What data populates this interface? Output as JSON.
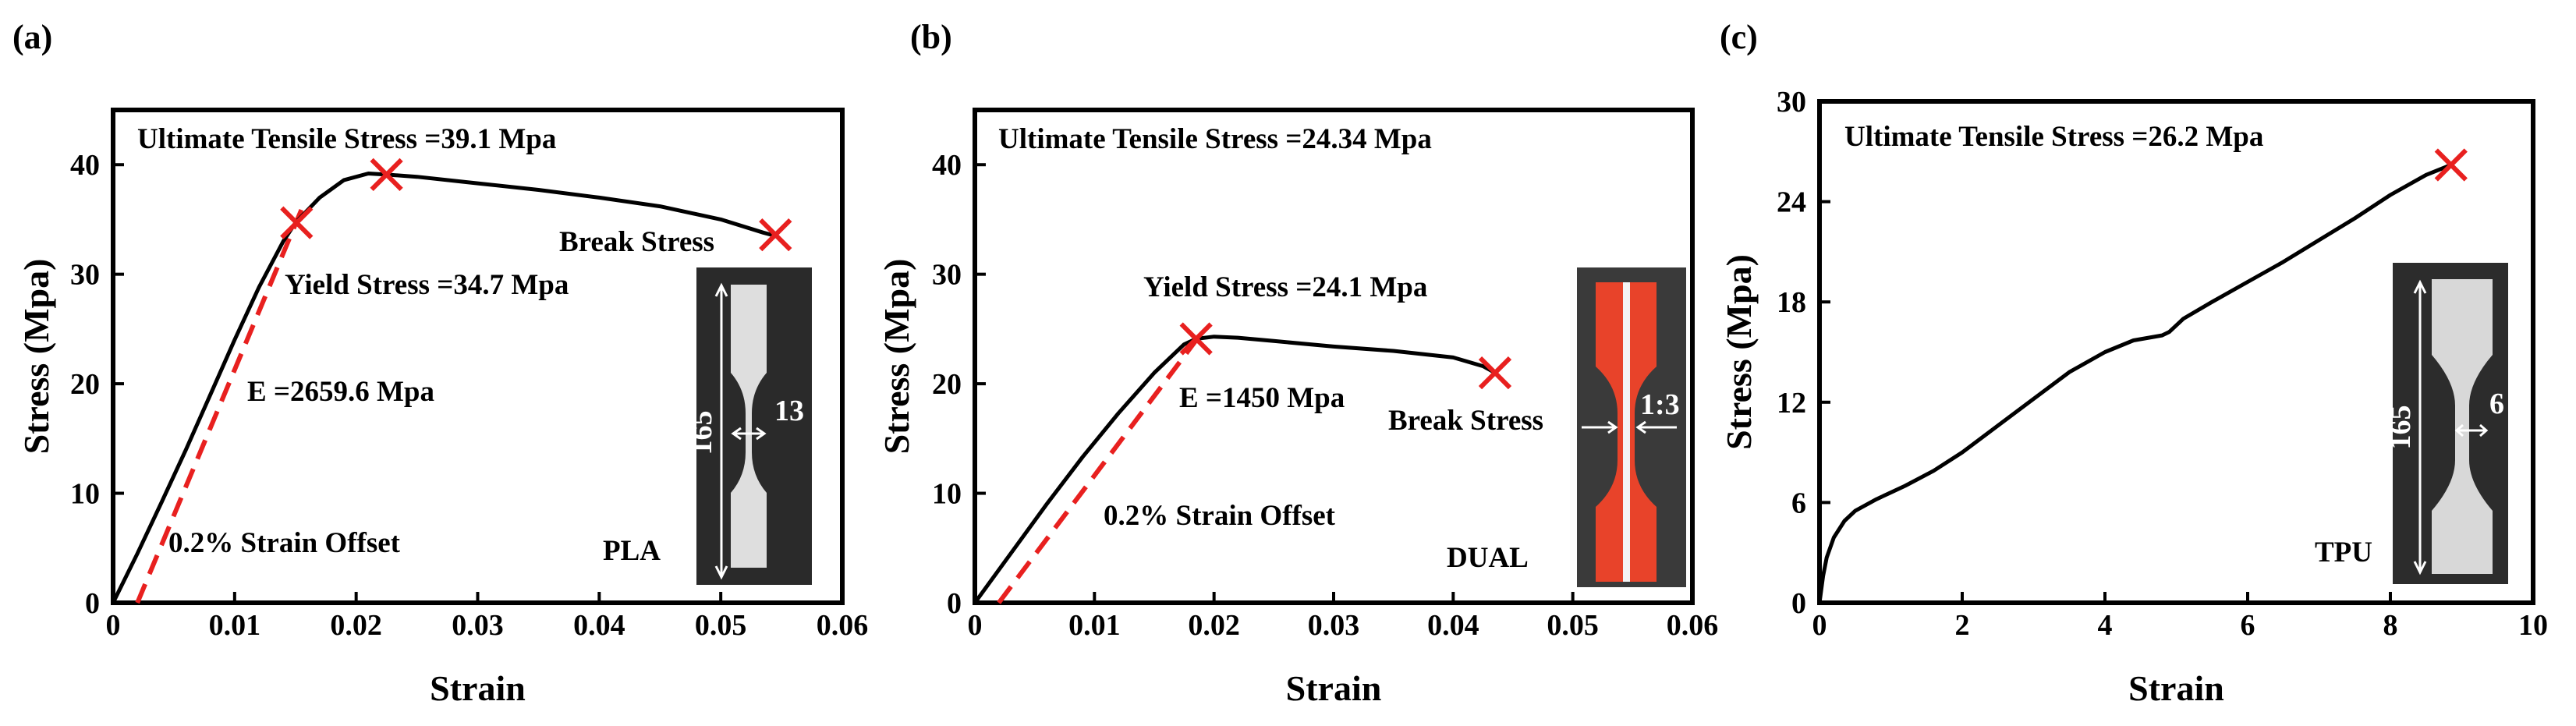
{
  "figure": {
    "panel_labels": [
      "(a)",
      "(b)",
      "(c)"
    ]
  },
  "chart_data": [
    {
      "type": "line",
      "panel": "(a)",
      "xlabel": "Strain",
      "ylabel": "Stress (Mpa)",
      "xlim": [
        0,
        0.06
      ],
      "ylim": [
        0,
        45
      ],
      "xticks": [
        0,
        0.01,
        0.02,
        0.03,
        0.04,
        0.05,
        0.06
      ],
      "xtick_labels": [
        "0",
        "0.01",
        "0.02",
        "0.03",
        "0.04",
        "0.05",
        "0.06"
      ],
      "yticks": [
        0,
        10,
        20,
        30,
        40
      ],
      "ytick_labels": [
        "0",
        "10",
        "20",
        "30",
        "40"
      ],
      "series": [
        {
          "name": "PLA stress-strain",
          "color": "#000000",
          "x": [
            0,
            0.002,
            0.004,
            0.006,
            0.008,
            0.01,
            0.012,
            0.014,
            0.015,
            0.017,
            0.019,
            0.021,
            0.0225,
            0.025,
            0.03,
            0.035,
            0.04,
            0.045,
            0.05,
            0.0535,
            0.0545
          ],
          "y": [
            0,
            4.5,
            9.2,
            14.0,
            19.0,
            24.0,
            28.8,
            33.0,
            34.7,
            37.0,
            38.6,
            39.2,
            39.1,
            38.9,
            38.3,
            37.7,
            37.0,
            36.2,
            35.0,
            33.8,
            33.5
          ]
        }
      ],
      "offset_line": {
        "color": "#e8201f",
        "x": [
          0.002,
          0.0155
        ],
        "y": [
          0,
          35.9
        ]
      },
      "markers": [
        {
          "name": "yield",
          "x": 0.0151,
          "y": 34.7,
          "color": "#e8201f"
        },
        {
          "name": "ultimate",
          "x": 0.0225,
          "y": 39.1,
          "color": "#e8201f"
        },
        {
          "name": "break",
          "x": 0.0545,
          "y": 33.6,
          "color": "#e8201f"
        }
      ],
      "annotations": {
        "uts": "Ultimate Tensile Stress =39.1 Mpa",
        "break": "Break Stress",
        "yield": "Yield Stress =34.7 Mpa",
        "modulus": "E =2659.6 Mpa",
        "offset": "0.2% Strain Offset",
        "material": "PLA"
      },
      "inset": {
        "bg": "#2a2a2a",
        "specimen_color": "#dedede",
        "length": "165",
        "width": "13"
      }
    },
    {
      "type": "line",
      "panel": "(b)",
      "xlabel": "Strain",
      "ylabel": "Stress (Mpa)",
      "xlim": [
        0,
        0.06
      ],
      "ylim": [
        0,
        45
      ],
      "xticks": [
        0,
        0.01,
        0.02,
        0.03,
        0.04,
        0.05,
        0.06
      ],
      "xtick_labels": [
        "0",
        "0.01",
        "0.02",
        "0.03",
        "0.04",
        "0.05",
        "0.06"
      ],
      "yticks": [
        0,
        10,
        20,
        30,
        40
      ],
      "ytick_labels": [
        "0",
        "10",
        "20",
        "30",
        "40"
      ],
      "series": [
        {
          "name": "DUAL stress-strain",
          "color": "#000000",
          "x": [
            0,
            0.003,
            0.006,
            0.009,
            0.012,
            0.015,
            0.0175,
            0.0185,
            0.02,
            0.022,
            0.025,
            0.03,
            0.035,
            0.04,
            0.0425,
            0.0435
          ],
          "y": [
            0,
            4.5,
            9.0,
            13.3,
            17.3,
            21.0,
            23.6,
            24.1,
            24.3,
            24.2,
            23.9,
            23.4,
            23.0,
            22.4,
            21.6,
            21.0
          ]
        }
      ],
      "offset_line": {
        "color": "#e8201f",
        "x": [
          0.002,
          0.0188
        ],
        "y": [
          0,
          24.4
        ]
      },
      "markers": [
        {
          "name": "yield",
          "x": 0.0185,
          "y": 24.1,
          "color": "#e8201f"
        },
        {
          "name": "break",
          "x": 0.0435,
          "y": 21.0,
          "color": "#e8201f"
        }
      ],
      "annotations": {
        "uts": "Ultimate Tensile Stress =24.34 Mpa",
        "yield": "Yield Stress =24.1 Mpa",
        "modulus": "E =1450 Mpa",
        "break": "Break Stress",
        "offset": "0.2% Strain Offset",
        "material": "DUAL"
      },
      "inset": {
        "bg": "#3a3a3a",
        "specimen_color": "#e8432a",
        "stripe_color": "#f4f4f4",
        "ratio": "1:3"
      }
    },
    {
      "type": "line",
      "panel": "(c)",
      "xlabel": "Strain",
      "ylabel": "Stress (Mpa)",
      "xlim": [
        0,
        10
      ],
      "ylim": [
        0,
        30
      ],
      "xticks": [
        0,
        2,
        4,
        6,
        8,
        10
      ],
      "xtick_labels": [
        "0",
        "2",
        "4",
        "6",
        "8",
        "10"
      ],
      "yticks": [
        0,
        6,
        12,
        18,
        24,
        30
      ],
      "ytick_labels": [
        "0",
        "6",
        "12",
        "18",
        "24",
        "30"
      ],
      "series": [
        {
          "name": "TPU stress-strain",
          "color": "#000000",
          "x": [
            0,
            0.05,
            0.1,
            0.2,
            0.35,
            0.5,
            0.8,
            1.2,
            1.6,
            2.0,
            2.5,
            3.0,
            3.5,
            4.0,
            4.4,
            4.8,
            4.9,
            5.1,
            5.5,
            6.0,
            6.5,
            7.0,
            7.5,
            8.0,
            8.5,
            8.85
          ],
          "y": [
            0,
            1.6,
            2.7,
            3.9,
            4.9,
            5.5,
            6.2,
            7.0,
            7.9,
            9.0,
            10.6,
            12.2,
            13.8,
            15.0,
            15.7,
            16.0,
            16.2,
            17.0,
            18.0,
            19.2,
            20.4,
            21.7,
            23.0,
            24.4,
            25.6,
            26.2
          ]
        }
      ],
      "markers": [
        {
          "name": "ultimate",
          "x": 8.85,
          "y": 26.2,
          "color": "#e8201f"
        }
      ],
      "annotations": {
        "uts": "Ultimate Tensile Stress =26.2 Mpa",
        "material": "TPU"
      },
      "inset": {
        "bg": "#2c2c2c",
        "specimen_color": "#d8d8d8",
        "length": "165",
        "width": "6"
      }
    }
  ]
}
